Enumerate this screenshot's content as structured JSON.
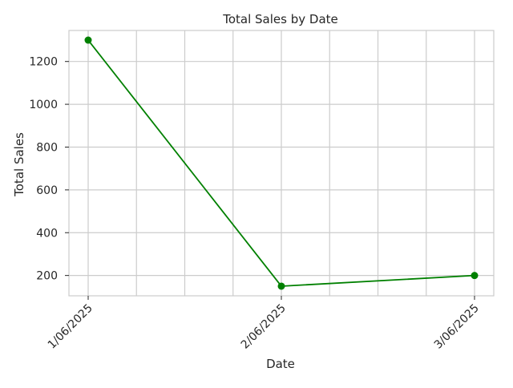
{
  "chart_data": {
    "type": "line",
    "title": "Total Sales by Date",
    "xlabel": "Date",
    "ylabel": "Total Sales",
    "categories": [
      "1/06/2025",
      "2/06/2025",
      "3/06/2025"
    ],
    "series": [
      {
        "values": [
          1300,
          150,
          200
        ],
        "color": "#008000",
        "marker": "circle"
      }
    ],
    "ylim": [
      105,
      1345
    ],
    "yticks": [
      200,
      400,
      600,
      800,
      1000,
      1200
    ],
    "x_minor_gridlines": 4,
    "grid": true,
    "background": "#ffffff",
    "grid_color": "#cccccc",
    "tick_label_rotation_deg": 45
  }
}
